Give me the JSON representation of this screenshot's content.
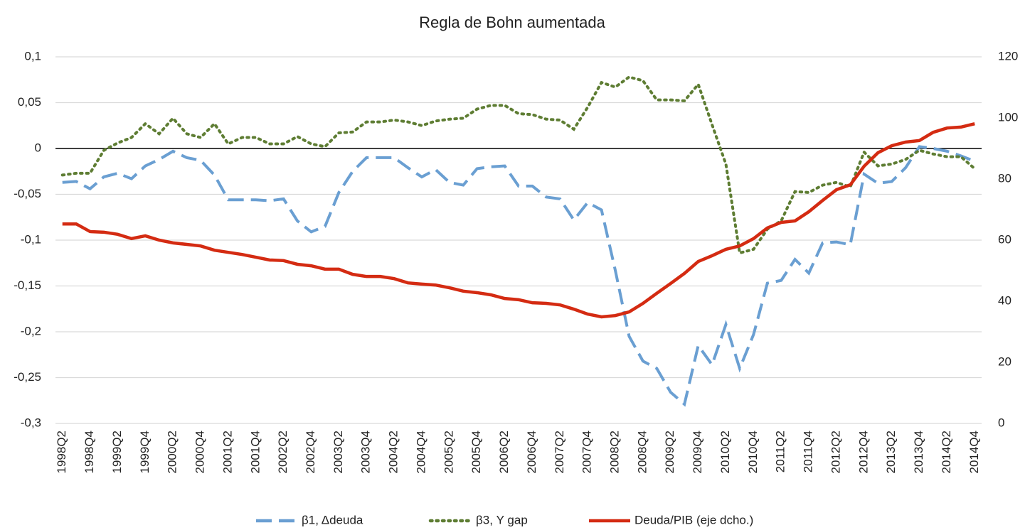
{
  "chart_data": {
    "type": "line",
    "title": "Regla de Bohn aumentada",
    "categories": [
      "1998Q2",
      null,
      "1998Q4",
      null,
      "1999Q2",
      null,
      "1999Q4",
      null,
      "2000Q2",
      null,
      "2000Q4",
      null,
      "2001Q2",
      null,
      "2001Q4",
      null,
      "2002Q2",
      null,
      "2002Q4",
      null,
      "2003Q2",
      null,
      "2003Q4",
      null,
      "2004Q2",
      null,
      "2004Q4",
      null,
      "2005Q2",
      null,
      "2005Q4",
      null,
      "2006Q2",
      null,
      "2006Q4",
      null,
      "2007Q2",
      null,
      "2007Q4",
      null,
      "2008Q2",
      null,
      "2008Q4",
      null,
      "2009Q2",
      null,
      "2009Q4",
      null,
      "2010Q2",
      null,
      "2010Q4",
      null,
      "2011Q2",
      null,
      "2011Q4",
      null,
      "2012Q2",
      null,
      "2012Q4",
      null,
      "2013Q2",
      null,
      "2013Q4",
      null,
      "2014Q2",
      null,
      "2014Q4"
    ],
    "series": [
      {
        "name": "β1, Δdeuda",
        "color": "#6a9fd2",
        "style": "dashed",
        "axis": "y",
        "values": [
          -0.037,
          -0.036,
          -0.044,
          -0.031,
          -0.027,
          -0.033,
          -0.019,
          -0.012,
          -0.003,
          -0.01,
          -0.013,
          -0.029,
          -0.056,
          -0.056,
          -0.056,
          -0.057,
          -0.055,
          -0.079,
          -0.091,
          -0.085,
          -0.048,
          -0.025,
          -0.01,
          -0.01,
          -0.01,
          -0.021,
          -0.031,
          -0.023,
          -0.037,
          -0.04,
          -0.022,
          -0.02,
          -0.019,
          -0.041,
          -0.041,
          -0.053,
          -0.055,
          -0.078,
          -0.059,
          -0.067,
          -0.133,
          -0.205,
          -0.232,
          -0.24,
          -0.266,
          -0.279,
          -0.215,
          -0.236,
          -0.192,
          -0.24,
          -0.203,
          -0.147,
          -0.144,
          -0.121,
          -0.136,
          -0.103,
          -0.102,
          -0.105,
          -0.028,
          -0.038,
          -0.036,
          -0.021,
          0.002,
          0.0,
          -0.003,
          -0.008,
          -0.014
        ]
      },
      {
        "name": "β3, Y gap",
        "color": "#5e7d33",
        "style": "dotted",
        "axis": "y",
        "values": [
          -0.029,
          -0.027,
          -0.027,
          -0.002,
          0.006,
          0.012,
          0.027,
          0.016,
          0.033,
          0.016,
          0.012,
          0.027,
          0.005,
          0.012,
          0.012,
          0.005,
          0.005,
          0.013,
          0.005,
          0.002,
          0.017,
          0.018,
          0.029,
          0.029,
          0.031,
          0.029,
          0.025,
          0.03,
          0.032,
          0.033,
          0.043,
          0.047,
          0.047,
          0.038,
          0.037,
          0.032,
          0.031,
          0.021,
          0.045,
          0.072,
          0.067,
          0.078,
          0.074,
          0.053,
          0.053,
          0.052,
          0.07,
          0.026,
          -0.017,
          -0.114,
          -0.11,
          -0.088,
          -0.079,
          -0.047,
          -0.048,
          -0.04,
          -0.037,
          -0.042,
          -0.004,
          -0.019,
          -0.017,
          -0.012,
          -0.002,
          -0.006,
          -0.009,
          -0.009,
          -0.022
        ]
      },
      {
        "name": "Deuda/PIB (eje dcho.)",
        "color": "#d42b12",
        "style": "solid",
        "axis": "y2",
        "values": [
          65.3,
          65.3,
          62.8,
          62.6,
          61.9,
          60.5,
          61.4,
          60.0,
          59.1,
          58.6,
          58.1,
          56.7,
          56.0,
          55.3,
          54.4,
          53.5,
          53.3,
          52.1,
          51.6,
          50.5,
          50.5,
          48.8,
          48.1,
          48.1,
          47.4,
          46.0,
          45.6,
          45.3,
          44.4,
          43.3,
          42.8,
          42.1,
          40.9,
          40.5,
          39.5,
          39.3,
          38.8,
          37.4,
          35.8,
          34.9,
          35.3,
          36.5,
          39.3,
          42.6,
          45.8,
          49.1,
          53.0,
          54.9,
          57.0,
          58.1,
          60.5,
          64.0,
          65.8,
          66.3,
          69.3,
          73.0,
          76.5,
          78.1,
          84.2,
          88.6,
          90.9,
          92.1,
          92.6,
          95.3,
          96.7,
          97.0,
          98.1
        ]
      }
    ],
    "ylim": [
      -0.3,
      0.1
    ],
    "yticks": [
      {
        "value": -0.3,
        "label": "-0,3"
      },
      {
        "value": -0.25,
        "label": "-0,25"
      },
      {
        "value": -0.2,
        "label": "-0,2"
      },
      {
        "value": -0.15,
        "label": "-0,15"
      },
      {
        "value": -0.1,
        "label": "-0,1"
      },
      {
        "value": -0.05,
        "label": "-0,05"
      },
      0,
      {
        "value": 0.05,
        "label": "0,05"
      },
      {
        "value": 0.1,
        "label": "0,1"
      }
    ],
    "y2lim": [
      0,
      120
    ],
    "y2ticks": [
      0,
      20,
      40,
      60,
      80,
      100,
      120
    ],
    "grid": true,
    "legend": "bottom"
  }
}
